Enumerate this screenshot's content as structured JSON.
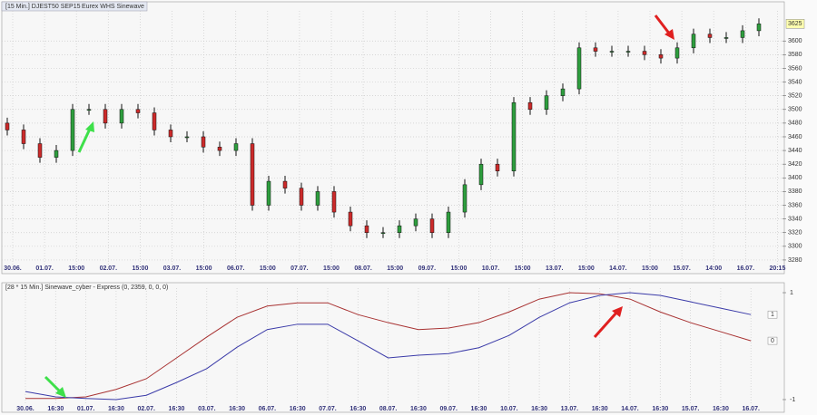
{
  "chart_data": [
    {
      "type": "candlestick",
      "title": "[15 Min.] DJEST50 SEP15",
      "subtitle": "Eurex WHS Sinewave",
      "open": [
        3480,
        3470,
        3450,
        3430,
        3440,
        3500,
        3500,
        3480,
        3500,
        3495,
        3470,
        3460,
        3460,
        3445,
        3440,
        3450,
        3360,
        3395,
        3385,
        3360,
        3380,
        3350,
        3330,
        3320,
        3320,
        3330,
        3340,
        3320,
        3350,
        3390,
        3420,
        3410,
        3510,
        3500,
        3520,
        3530,
        3590,
        3585,
        3585,
        3585,
        3580,
        3575,
        3590,
        3610,
        3605,
        3605,
        3615
      ],
      "high": [
        3488,
        3478,
        3458,
        3448,
        3508,
        3508,
        3508,
        3508,
        3508,
        3503,
        3478,
        3468,
        3468,
        3453,
        3458,
        3458,
        3403,
        3403,
        3393,
        3388,
        3388,
        3358,
        3338,
        3328,
        3338,
        3348,
        3348,
        3358,
        3398,
        3428,
        3428,
        3518,
        3518,
        3528,
        3538,
        3598,
        3598,
        3593,
        3593,
        3593,
        3588,
        3598,
        3618,
        3618,
        3613,
        3623,
        3633
      ],
      "low": [
        3462,
        3442,
        3422,
        3422,
        3432,
        3492,
        3472,
        3472,
        3487,
        3462,
        3452,
        3452,
        3437,
        3432,
        3432,
        3352,
        3352,
        3377,
        3352,
        3352,
        3342,
        3322,
        3312,
        3312,
        3312,
        3322,
        3312,
        3312,
        3342,
        3382,
        3402,
        3402,
        3492,
        3492,
        3512,
        3522,
        3577,
        3577,
        3577,
        3572,
        3567,
        3567,
        3582,
        3597,
        3597,
        3597,
        3607
      ],
      "close": [
        3470,
        3450,
        3430,
        3440,
        3500,
        3500,
        3480,
        3500,
        3495,
        3470,
        3460,
        3460,
        3445,
        3440,
        3450,
        3360,
        3395,
        3385,
        3360,
        3380,
        3350,
        3330,
        3320,
        3320,
        3330,
        3340,
        3320,
        3350,
        3390,
        3420,
        3410,
        3510,
        3500,
        3520,
        3530,
        3590,
        3585,
        3585,
        3585,
        3580,
        3575,
        3590,
        3610,
        3605,
        3605,
        3615,
        3625
      ],
      "last_label": "3625",
      "up_color": "#2e9e3e",
      "down_color": "#cc2a2a",
      "ylim": [
        3268,
        3644
      ],
      "yticks": [
        3280,
        3300,
        3320,
        3340,
        3360,
        3380,
        3400,
        3420,
        3440,
        3460,
        3480,
        3500,
        3520,
        3540,
        3560,
        3580,
        3600
      ],
      "x_labels": [
        "30.06.",
        "01.07.",
        "15:00",
        "02.07.",
        "15:00",
        "03.07.",
        "15:00",
        "06.07.",
        "15:00",
        "07.07.",
        "15:00",
        "08.07.",
        "15:00",
        "09.07.",
        "15:00",
        "10.07.",
        "15:00",
        "13.07.",
        "15:00",
        "14.07.",
        "15:00",
        "15.07.",
        "14:00",
        "16.07.",
        "20:15"
      ],
      "grid": true
    },
    {
      "type": "line",
      "title": "[28 * 15 Min.] Sinewave_cyber - Express  (0, 2359, 0, 0, 0)",
      "categories": [
        "30.06.",
        "16:30",
        "01.07.",
        "16:30",
        "02.07.",
        "16:30",
        "03.07.",
        "16:30",
        "06.07.",
        "16:30",
        "07.07.",
        "16:30",
        "08.07.",
        "16:30",
        "09.07.",
        "16:30",
        "10.07.",
        "16:30",
        "13.07.",
        "16:30",
        "14.07.",
        "16:30",
        "15.07.",
        "16:30",
        "16.07."
      ],
      "series": [
        {
          "color": "#a83232",
          "values": [
            -0.98,
            -0.98,
            -0.95,
            -0.81,
            -0.61,
            -0.22,
            0.17,
            0.54,
            0.75,
            0.81,
            0.81,
            0.59,
            0.44,
            0.31,
            0.34,
            0.44,
            0.64,
            0.88,
            1.0,
            0.98,
            0.88,
            0.64,
            0.44,
            0.27,
            0.1
          ],
          "current_label": "0"
        },
        {
          "color": "#3a3aa8",
          "values": [
            -0.85,
            -0.95,
            -0.98,
            -1.0,
            -0.92,
            -0.68,
            -0.42,
            -0.02,
            0.31,
            0.41,
            0.41,
            0.1,
            -0.22,
            -0.17,
            -0.14,
            -0.03,
            0.2,
            0.54,
            0.81,
            0.95,
            1.0,
            0.95,
            0.83,
            0.71,
            0.59
          ],
          "current_label": "1"
        }
      ],
      "ylim": [
        -1.085,
        1.085
      ],
      "yticks": [
        -1,
        1
      ],
      "grid": true
    }
  ]
}
